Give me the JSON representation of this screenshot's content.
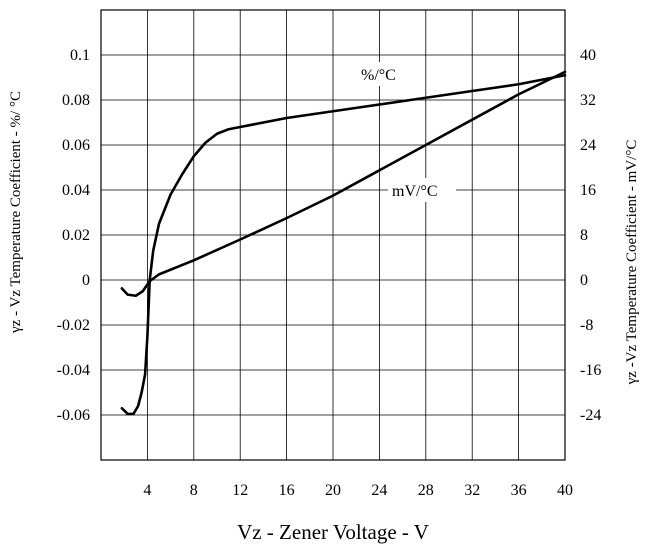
{
  "chart_data": {
    "type": "line",
    "xlabel": "Vz - Zener Voltage - V",
    "ylabel_left": "γz - Vz Temperature Coefficient - %/ °C",
    "ylabel_right": "γz -Vz Temperature Coefficient - mV/°C",
    "xlim": [
      0,
      40
    ],
    "ylim_left": [
      -0.08,
      0.12
    ],
    "ylim_right": [
      -32,
      48
    ],
    "grid": true,
    "x_ticks": [
      4,
      8,
      12,
      16,
      20,
      24,
      28,
      32,
      36,
      40
    ],
    "y_ticks_left": [
      {
        "value": 0.1,
        "label": "0.1"
      },
      {
        "value": 0.08,
        "label": "0.08"
      },
      {
        "value": 0.06,
        "label": "0.06"
      },
      {
        "value": 0.04,
        "label": "0.04"
      },
      {
        "value": 0.02,
        "label": "0.02"
      },
      {
        "value": 0,
        "label": "0"
      },
      {
        "value": -0.02,
        "label": "-0.02"
      },
      {
        "value": -0.04,
        "label": "-0.04"
      },
      {
        "value": -0.06,
        "label": "-0.06"
      }
    ],
    "y_ticks_right": [
      {
        "value": 40,
        "label": "40"
      },
      {
        "value": 32,
        "label": "32"
      },
      {
        "value": 24,
        "label": "24"
      },
      {
        "value": 16,
        "label": "16"
      },
      {
        "value": 8,
        "label": "8"
      },
      {
        "value": 0,
        "label": "0"
      },
      {
        "value": -8,
        "label": "-8"
      },
      {
        "value": -16,
        "label": "-16"
      },
      {
        "value": -24,
        "label": "-24"
      }
    ],
    "series": [
      {
        "name": "%/°C",
        "axis": "left",
        "points": [
          [
            1.8,
            -0.057
          ],
          [
            2.3,
            -0.0595
          ],
          [
            2.8,
            -0.0595
          ],
          [
            3.2,
            -0.056
          ],
          [
            3.5,
            -0.05
          ],
          [
            3.8,
            -0.042
          ],
          [
            4.0,
            -0.025
          ],
          [
            4.2,
            0.0
          ],
          [
            4.5,
            0.013
          ],
          [
            5.0,
            0.025
          ],
          [
            6.0,
            0.038
          ],
          [
            7.0,
            0.047
          ],
          [
            8.0,
            0.055
          ],
          [
            9.0,
            0.061
          ],
          [
            10.0,
            0.065
          ],
          [
            11.0,
            0.067
          ],
          [
            12.0,
            0.068
          ],
          [
            16.0,
            0.072
          ],
          [
            20.0,
            0.075
          ],
          [
            24.0,
            0.078
          ],
          [
            28.0,
            0.081
          ],
          [
            32.0,
            0.084
          ],
          [
            36.0,
            0.087
          ],
          [
            40.0,
            0.091
          ]
        ]
      },
      {
        "name": "mV/°C",
        "axis": "right",
        "points": [
          [
            1.8,
            -1.5
          ],
          [
            2.3,
            -2.6
          ],
          [
            3.0,
            -2.8
          ],
          [
            3.6,
            -2.0
          ],
          [
            4.2,
            -0.2
          ],
          [
            5.0,
            1.0
          ],
          [
            8.0,
            3.5
          ],
          [
            12.0,
            7.2
          ],
          [
            16.0,
            11.0
          ],
          [
            20.0,
            15.0
          ],
          [
            24.0,
            19.5
          ],
          [
            28.0,
            24.0
          ],
          [
            32.0,
            28.5
          ],
          [
            36.0,
            33.0
          ],
          [
            40.0,
            37.0
          ]
        ]
      }
    ],
    "annotations": [
      {
        "text": "%/°C",
        "series": 0
      },
      {
        "text": "mV/°C",
        "series": 1
      }
    ]
  }
}
